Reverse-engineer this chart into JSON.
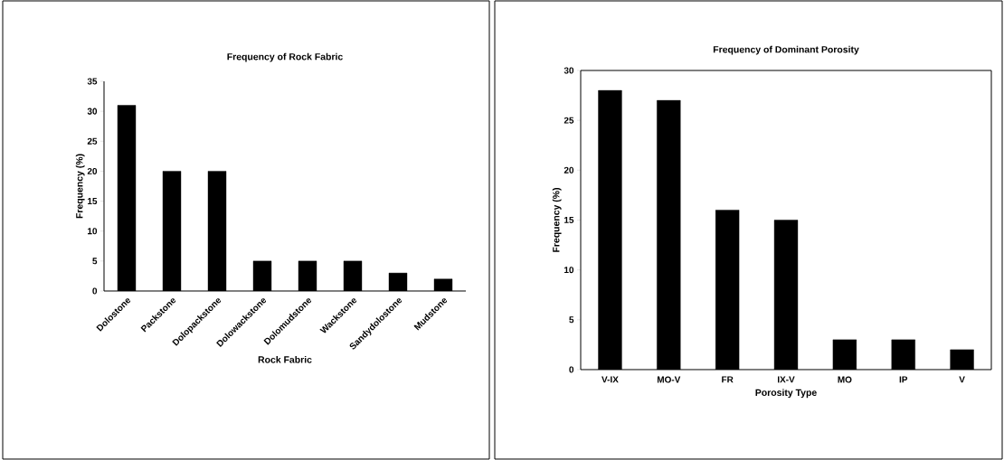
{
  "chart_data": [
    {
      "type": "bar",
      "title": "Frequency of Rock Fabric",
      "xlabel": "Rock Fabric",
      "ylabel": "Frequency (%)",
      "categories": [
        "Dolostone",
        "Packstone",
        "Dolopackstone",
        "Dolowackstone",
        "Dolomudstone",
        "Wackstone",
        "Sandydolostone",
        "Mudstone"
      ],
      "values": [
        31,
        20,
        20,
        5,
        5,
        5,
        3,
        2
      ],
      "color": "#000000",
      "ylim": [
        0,
        35
      ],
      "yticks": [
        0,
        5,
        10,
        15,
        20,
        25,
        30,
        35
      ]
    },
    {
      "type": "bar",
      "title": "Frequency of Dominant Porosity",
      "xlabel": "Porosity Type",
      "ylabel": "Frequency (%)",
      "categories": [
        "V-IX",
        "MO-V",
        "FR",
        "IX-V",
        "MO",
        "IP",
        "V"
      ],
      "values": [
        28,
        27,
        16,
        15,
        3,
        3,
        2
      ],
      "color": "#000000",
      "ylim": [
        0,
        30
      ],
      "yticks": [
        0,
        5,
        10,
        15,
        20,
        25,
        30
      ]
    }
  ]
}
